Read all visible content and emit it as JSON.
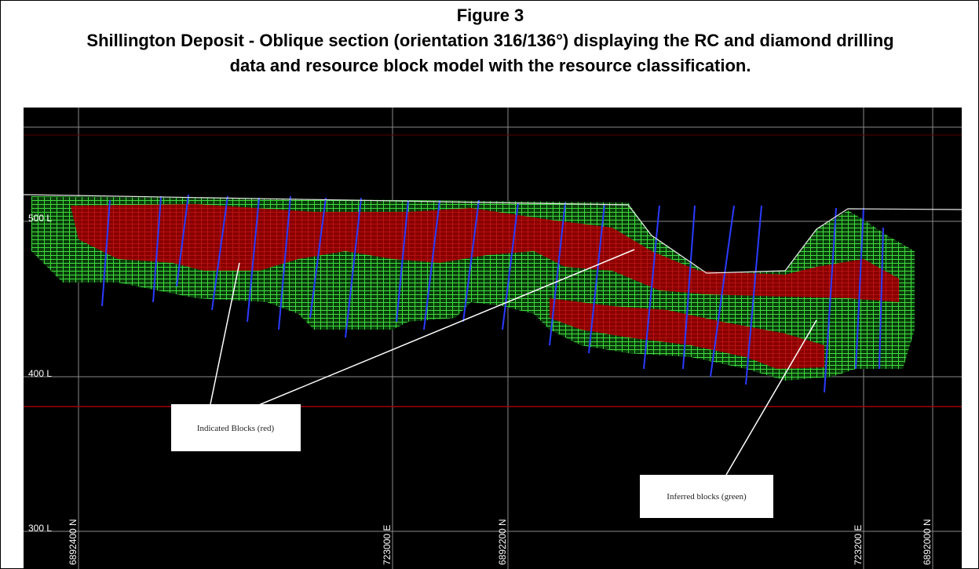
{
  "figure": {
    "number": "Figure 3",
    "caption": [
      "Shillington Deposit - Oblique section (orientation 316/136°) displaying the RC and diamond drilling",
      "data and resource block model with the resource classification."
    ]
  },
  "levels": [
    "500 L",
    "400 L",
    "300 L"
  ],
  "grid_labels": [
    "6892400 N",
    "723000 E",
    "6892200 N",
    "723200 E",
    "6892000 N"
  ],
  "callouts": [
    "Indicated Blocks (red)",
    "Inferred blocks (green)"
  ]
}
